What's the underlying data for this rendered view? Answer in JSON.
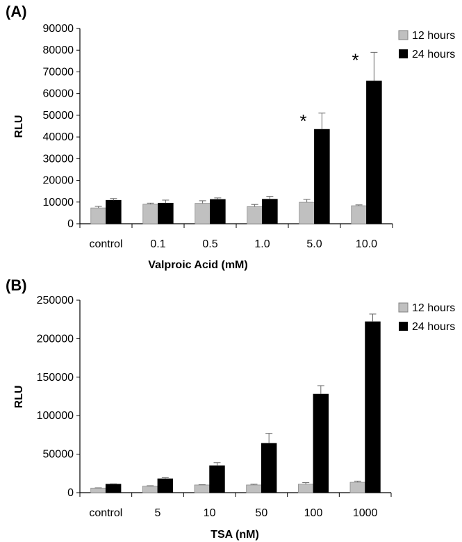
{
  "chart_data": [
    {
      "type": "bar",
      "panel_label": "(A)",
      "xlabel": "Valproic Acid (mM)",
      "ylabel": "RLU",
      "ylim": [
        0,
        90000
      ],
      "yticks": [
        0,
        10000,
        20000,
        30000,
        40000,
        50000,
        60000,
        70000,
        80000,
        90000
      ],
      "categories": [
        "control",
        "0.1",
        "0.5",
        "1.0",
        "5.0",
        "10.0"
      ],
      "series": [
        {
          "name": "12 hours",
          "color": "#c0c0c0",
          "values": [
            7300,
            9000,
            9400,
            7900,
            9900,
            8300
          ],
          "errors": [
            700,
            500,
            1200,
            1000,
            1300,
            400
          ]
        },
        {
          "name": "24 hours",
          "color": "#000000",
          "values": [
            10800,
            9500,
            11200,
            11300,
            43500,
            65800
          ],
          "errors": [
            800,
            1400,
            700,
            1300,
            7500,
            13200
          ]
        }
      ],
      "annotations": [
        {
          "text": "*",
          "category": "5.0",
          "series": "24 hours"
        },
        {
          "text": "*",
          "category": "10.0",
          "series": "24 hours"
        }
      ],
      "legend": "top-right",
      "grid": false
    },
    {
      "type": "bar",
      "panel_label": "(B)",
      "xlabel": "TSA (nM)",
      "ylabel": "RLU",
      "ylim": [
        0,
        250000
      ],
      "yticks": [
        0,
        50000,
        100000,
        150000,
        200000,
        250000
      ],
      "categories": [
        "control",
        "5",
        "10",
        "50",
        "100",
        "1000"
      ],
      "series": [
        {
          "name": "12 hours",
          "color": "#c0c0c0",
          "values": [
            6000,
            8500,
            10000,
            10000,
            11000,
            13500
          ],
          "errors": [
            300,
            500,
            300,
            1000,
            2000,
            1500
          ]
        },
        {
          "name": "24 hours",
          "color": "#000000",
          "values": [
            11000,
            18000,
            35000,
            64000,
            128000,
            222000
          ],
          "errors": [
            500,
            1500,
            4000,
            13000,
            11000,
            10000
          ]
        }
      ],
      "legend": "top-right",
      "grid": false
    }
  ]
}
